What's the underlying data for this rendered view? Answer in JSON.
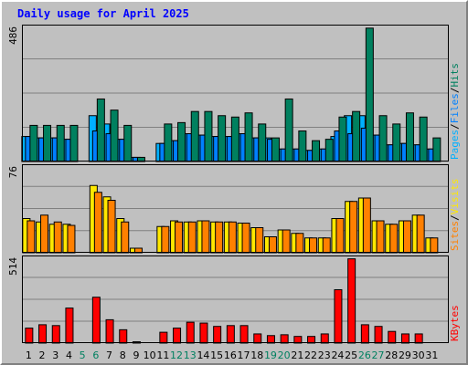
{
  "title": "Daily usage for April 2025",
  "colors": {
    "pages": "#00b0ff",
    "files": "#0080ff",
    "hits": "#00805f",
    "visits": "#ffe800",
    "sites": "#ff8000",
    "kbytes": "#ff0000",
    "weekend_label": "#008060",
    "weekday_label": "#000000",
    "separator": "#000000"
  },
  "chart_data": [
    {
      "type": "bar",
      "categories": [
        "1",
        "2",
        "3",
        "4",
        "5",
        "6",
        "7",
        "8",
        "9",
        "10",
        "11",
        "12",
        "13",
        "14",
        "15",
        "16",
        "17",
        "18",
        "19",
        "20",
        "21",
        "22",
        "23",
        "24",
        "25",
        "26",
        "27",
        "28",
        "29",
        "30",
        "31"
      ],
      "ylim": [
        0,
        486
      ],
      "max_label": "486",
      "series": [
        {
          "name": "Pages",
          "color": "pages",
          "values": [
            90,
            85,
            85,
            80,
            0,
            165,
            135,
            80,
            15,
            0,
            65,
            75,
            100,
            95,
            90,
            90,
            100,
            85,
            85,
            45,
            45,
            40,
            45,
            90,
            165,
            165,
            95,
            60,
            65,
            60,
            45
          ]
        },
        {
          "name": "Files",
          "color": "files",
          "values": [
            90,
            85,
            85,
            80,
            0,
            110,
            100,
            80,
            15,
            0,
            65,
            75,
            100,
            95,
            90,
            90,
            100,
            85,
            80,
            45,
            45,
            40,
            45,
            110,
            100,
            120,
            95,
            60,
            65,
            60,
            45
          ]
        },
        {
          "name": "Hits",
          "color": "hits",
          "values": [
            130,
            130,
            130,
            130,
            0,
            225,
            185,
            130,
            15,
            0,
            135,
            140,
            180,
            180,
            165,
            160,
            175,
            135,
            85,
            225,
            110,
            75,
            80,
            160,
            180,
            480,
            165,
            135,
            175,
            160,
            85
          ]
        }
      ],
      "legend": [
        "Pages",
        "Files",
        "Hits"
      ]
    },
    {
      "type": "bar",
      "categories": [
        "1",
        "2",
        "3",
        "4",
        "5",
        "6",
        "7",
        "8",
        "9",
        "10",
        "11",
        "12",
        "13",
        "14",
        "15",
        "16",
        "17",
        "18",
        "19",
        "20",
        "21",
        "22",
        "23",
        "24",
        "25",
        "26",
        "27",
        "28",
        "29",
        "30",
        "31"
      ],
      "ylim": [
        0,
        76
      ],
      "max_label": "76",
      "series": [
        {
          "name": "Visits",
          "color": "visits",
          "values": [
            30,
            27,
            25,
            25,
            0,
            59,
            49,
            30,
            4,
            0,
            23,
            28,
            27,
            28,
            27,
            27,
            26,
            22,
            14,
            20,
            17,
            13,
            13,
            30,
            45,
            48,
            28,
            25,
            28,
            33,
            13
          ]
        },
        {
          "name": "Sites",
          "color": "sites",
          "values": [
            28,
            33,
            27,
            24,
            0,
            53,
            46,
            27,
            4,
            0,
            23,
            27,
            27,
            28,
            27,
            27,
            26,
            22,
            14,
            20,
            17,
            13,
            13,
            30,
            45,
            48,
            28,
            25,
            28,
            33,
            13
          ]
        }
      ],
      "legend": [
        "Sites",
        "Visits"
      ]
    },
    {
      "type": "bar",
      "categories": [
        "1",
        "2",
        "3",
        "4",
        "5",
        "6",
        "7",
        "8",
        "9",
        "10",
        "11",
        "12",
        "13",
        "14",
        "15",
        "16",
        "17",
        "18",
        "19",
        "20",
        "21",
        "22",
        "23",
        "24",
        "25",
        "26",
        "27",
        "28",
        "29",
        "30",
        "31"
      ],
      "ylim": [
        0,
        514
      ],
      "max_label": "514",
      "series": [
        {
          "name": "KBytes",
          "color": "kbytes",
          "values": [
            90,
            110,
            105,
            210,
            0,
            275,
            140,
            80,
            8,
            0,
            65,
            90,
            125,
            120,
            100,
            105,
            105,
            55,
            45,
            50,
            40,
            40,
            55,
            320,
            505,
            110,
            100,
            70,
            55,
            55,
            0
          ]
        }
      ],
      "legend": [
        "KBytes"
      ]
    }
  ]
}
